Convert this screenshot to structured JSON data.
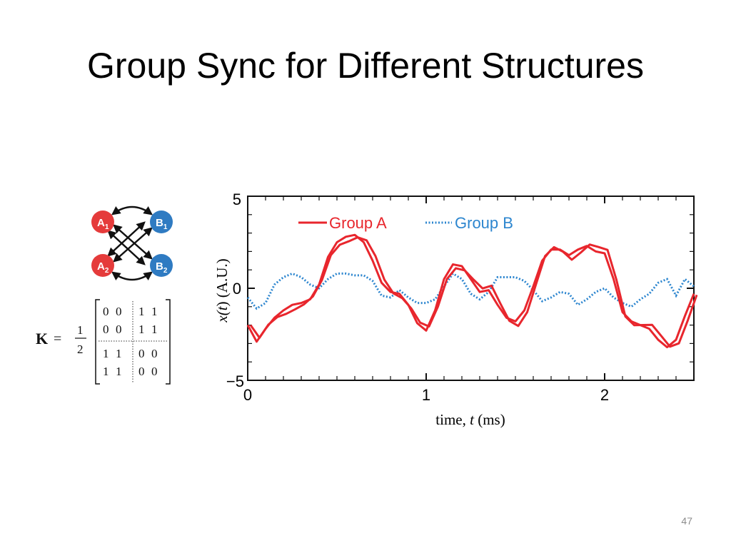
{
  "slide": {
    "title": "Group Sync for Different Structures",
    "page_number": "47"
  },
  "diagram": {
    "nodes": [
      {
        "id": "A1",
        "letter": "A",
        "sub": "1",
        "color": "#e53b3b"
      },
      {
        "id": "A2",
        "letter": "A",
        "sub": "2",
        "color": "#e53b3b"
      },
      {
        "id": "B1",
        "letter": "B",
        "sub": "1",
        "color": "#2f7bc2"
      },
      {
        "id": "B2",
        "letter": "B",
        "sub": "2",
        "color": "#2f7bc2"
      }
    ],
    "matrix": {
      "symbol": "K",
      "equals": "=",
      "numerator": "1",
      "denominator": "2",
      "rows": [
        [
          "0",
          "0",
          "1",
          "1"
        ],
        [
          "0",
          "0",
          "1",
          "1"
        ],
        [
          "1",
          "1",
          "0",
          "0"
        ],
        [
          "1",
          "1",
          "0",
          "0"
        ]
      ]
    }
  },
  "chart_data": {
    "type": "line",
    "title": "",
    "xlabel_prefix": "time, ",
    "xlabel_var": "t",
    "xlabel_suffix": " (ms)",
    "ylabel_prefix": "x(",
    "ylabel_var": "t",
    "ylabel_suffix": ") (A.U.)",
    "xlim": [
      0,
      2.5
    ],
    "ylim": [
      -5,
      5
    ],
    "xticks": [
      0,
      1,
      2
    ],
    "yticks": [
      -5,
      0,
      5
    ],
    "x_tick_labels": [
      "0",
      "1",
      "2"
    ],
    "y_tick_labels": [
      "−5",
      "0",
      "5"
    ],
    "legend_position": "top",
    "colors": {
      "group_a": "#e8262d",
      "group_b": "#2d86cf"
    },
    "series": [
      {
        "name": "Group A",
        "style": "solid",
        "x": [
          0,
          0.05,
          0.1,
          0.15,
          0.2,
          0.25,
          0.3,
          0.35,
          0.4,
          0.45,
          0.5,
          0.55,
          0.6,
          0.65,
          0.7,
          0.75,
          0.8,
          0.85,
          0.9,
          0.95,
          1.0,
          1.05,
          1.1,
          1.15,
          1.2,
          1.25,
          1.3,
          1.35,
          1.4,
          1.45,
          1.5,
          1.55,
          1.6,
          1.65,
          1.7,
          1.75,
          1.8,
          1.85,
          1.9,
          1.95,
          2.0,
          2.05,
          2.1,
          2.15,
          2.2,
          2.25,
          2.3,
          2.35,
          2.4,
          2.45,
          2.5
        ],
        "y": [
          -2.0,
          -2.9,
          -2.2,
          -1.6,
          -1.2,
          -0.9,
          -0.8,
          -0.6,
          0.2,
          1.7,
          2.5,
          2.8,
          2.9,
          2.5,
          1.5,
          0.3,
          -0.2,
          -0.3,
          -0.9,
          -1.9,
          -2.3,
          -1.2,
          0.5,
          1.3,
          1.2,
          0.5,
          -0.2,
          -0.1,
          -0.9,
          -1.6,
          -1.8,
          -1.2,
          0.1,
          1.5,
          2.1,
          2.1,
          1.8,
          2.1,
          2.3,
          2.0,
          1.9,
          0.5,
          -1.3,
          -1.8,
          -2.0,
          -2.2,
          -2.8,
          -3.2,
          -2.8,
          -1.5,
          -0.3
        ]
      },
      {
        "name": "Group B",
        "style": "dotted",
        "x": [
          0,
          0.05,
          0.1,
          0.15,
          0.2,
          0.25,
          0.3,
          0.35,
          0.4,
          0.45,
          0.5,
          0.55,
          0.6,
          0.65,
          0.7,
          0.75,
          0.8,
          0.85,
          0.9,
          0.95,
          1.0,
          1.05,
          1.1,
          1.15,
          1.2,
          1.25,
          1.3,
          1.35,
          1.4,
          1.45,
          1.5,
          1.55,
          1.6,
          1.65,
          1.7,
          1.75,
          1.8,
          1.85,
          1.9,
          1.95,
          2.0,
          2.05,
          2.1,
          2.15,
          2.2,
          2.25,
          2.3,
          2.35,
          2.4,
          2.45,
          2.5
        ],
        "y": [
          -0.5,
          -1.1,
          -0.8,
          0.2,
          0.6,
          0.8,
          0.6,
          0.2,
          0.0,
          0.5,
          0.8,
          0.8,
          0.7,
          0.7,
          0.4,
          -0.4,
          -0.5,
          -0.1,
          -0.5,
          -0.8,
          -0.8,
          -0.6,
          0.1,
          0.8,
          0.5,
          -0.3,
          -0.6,
          -0.2,
          0.6,
          0.6,
          0.6,
          0.4,
          -0.1,
          -0.7,
          -0.5,
          -0.2,
          -0.3,
          -0.9,
          -0.6,
          -0.2,
          0.0,
          -0.5,
          -0.8,
          -1.0,
          -0.6,
          -0.3,
          0.3,
          0.5,
          -0.4,
          0.5,
          0.1
        ]
      }
    ]
  }
}
